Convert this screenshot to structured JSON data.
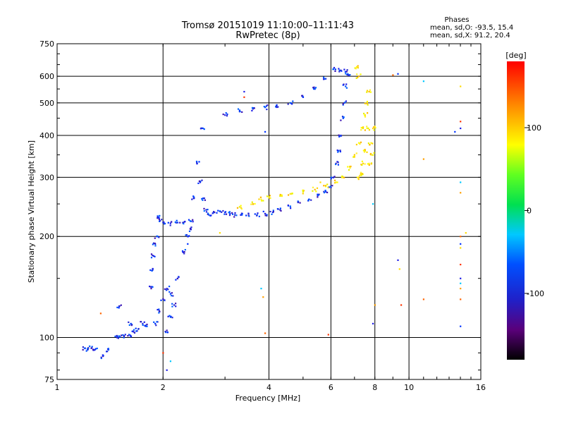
{
  "chart_data": {
    "type": "scatter",
    "title": "Tromsø 20151019 11:10:00–11:11:43",
    "subtitle": "RwPretec (8p)",
    "xlabel": "Frequency [MHz]",
    "ylabel": "Stationary phase Virtual Height [km]",
    "xscale": "log",
    "yscale": "log",
    "xlim": [
      1,
      16
    ],
    "ylim": [
      75,
      750
    ],
    "xticks": [
      1,
      2,
      4,
      6,
      8,
      10,
      16
    ],
    "xtick_labels": [
      "1",
      "2",
      "4",
      "6",
      "8",
      "10",
      "16"
    ],
    "yticks": [
      75,
      100,
      200,
      300,
      400,
      500,
      600,
      750
    ],
    "ytick_labels": [
      "75",
      "100",
      "200",
      "300",
      "400",
      "500",
      "600",
      "750"
    ],
    "grid": true,
    "stats": {
      "heading": "Phases",
      "line_o": "mean, sd,O:  -93.5,  15.4",
      "line_x": "mean, sd,X:   91.2,  20.4"
    },
    "colorbar": {
      "label": "[deg]",
      "range": [
        -180,
        180
      ],
      "ticks": [
        100,
        0,
        -100
      ],
      "tick_labels": [
        "100",
        "0",
        "-100"
      ]
    },
    "series": [
      {
        "mode": "O",
        "points": [
          [
            1.2,
            93
          ],
          [
            1.22,
            92
          ],
          [
            1.25,
            93
          ],
          [
            1.28,
            92
          ],
          [
            1.35,
            88
          ],
          [
            1.4,
            92
          ],
          [
            1.48,
            100
          ],
          [
            1.5,
            101
          ],
          [
            1.55,
            101
          ],
          [
            1.6,
            102
          ],
          [
            1.65,
            104
          ],
          [
            1.7,
            106
          ],
          [
            1.5,
            124
          ],
          [
            1.62,
            110
          ],
          [
            1.75,
            110
          ],
          [
            1.8,
            108
          ],
          [
            1.85,
            140
          ],
          [
            1.87,
            160
          ],
          [
            1.88,
            175
          ],
          [
            1.9,
            190
          ],
          [
            1.92,
            200
          ],
          [
            1.93,
            230
          ],
          [
            1.95,
            225
          ],
          [
            2.0,
            220
          ],
          [
            2.1,
            219
          ],
          [
            2.2,
            220
          ],
          [
            2.3,
            221
          ],
          [
            2.4,
            222
          ],
          [
            2.45,
            260
          ],
          [
            2.5,
            330
          ],
          [
            2.55,
            290
          ],
          [
            2.6,
            260
          ],
          [
            2.65,
            240
          ],
          [
            2.7,
            232
          ],
          [
            2.8,
            236
          ],
          [
            2.9,
            238
          ],
          [
            3.0,
            236
          ],
          [
            3.1,
            234
          ],
          [
            3.2,
            232
          ],
          [
            3.35,
            232
          ],
          [
            3.5,
            231
          ],
          [
            3.7,
            232
          ],
          [
            3.9,
            234
          ],
          [
            4.1,
            236
          ],
          [
            4.3,
            240
          ],
          [
            4.6,
            246
          ],
          [
            4.9,
            252
          ],
          [
            5.2,
            258
          ],
          [
            5.5,
            265
          ],
          [
            5.8,
            272
          ],
          [
            6.0,
            280
          ],
          [
            6.1,
            300
          ],
          [
            6.2,
            330
          ],
          [
            6.3,
            360
          ],
          [
            6.4,
            400
          ],
          [
            6.5,
            450
          ],
          [
            6.55,
            500
          ],
          [
            6.6,
            560
          ],
          [
            6.65,
            620
          ],
          [
            2.6,
            420
          ],
          [
            3.0,
            460
          ],
          [
            3.3,
            475
          ],
          [
            3.6,
            480
          ],
          [
            3.9,
            485
          ],
          [
            4.2,
            490
          ],
          [
            4.6,
            500
          ],
          [
            5.0,
            520
          ],
          [
            5.4,
            550
          ],
          [
            5.8,
            590
          ],
          [
            6.1,
            630
          ],
          [
            6.4,
            625
          ],
          [
            6.7,
            610
          ],
          [
            2.05,
            140
          ],
          [
            2.1,
            135
          ],
          [
            2.15,
            125
          ],
          [
            2.2,
            150
          ],
          [
            2.3,
            180
          ],
          [
            2.35,
            200
          ],
          [
            2.4,
            210
          ],
          [
            1.9,
            110
          ],
          [
            1.95,
            120
          ],
          [
            2.0,
            130
          ],
          [
            2.05,
            105
          ],
          [
            2.1,
            115
          ]
        ]
      },
      {
        "mode": "X",
        "points": [
          [
            4.0,
            262
          ],
          [
            4.3,
            264
          ],
          [
            4.6,
            268
          ],
          [
            5.0,
            272
          ],
          [
            5.4,
            276
          ],
          [
            5.8,
            282
          ],
          [
            6.2,
            290
          ],
          [
            6.5,
            300
          ],
          [
            6.8,
            320
          ],
          [
            7.0,
            350
          ],
          [
            7.2,
            380
          ],
          [
            7.4,
            420
          ],
          [
            7.5,
            460
          ],
          [
            7.6,
            500
          ],
          [
            7.7,
            540
          ],
          [
            7.6,
            420
          ],
          [
            7.5,
            360
          ],
          [
            7.4,
            330
          ],
          [
            7.3,
            310
          ],
          [
            7.2,
            300
          ],
          [
            7.8,
            380
          ],
          [
            7.9,
            350
          ],
          [
            7.9,
            420
          ],
          [
            7.7,
            330
          ],
          [
            7.2,
            600
          ],
          [
            7.1,
            640
          ],
          [
            3.3,
            245
          ],
          [
            3.6,
            250
          ],
          [
            3.8,
            258
          ]
        ]
      },
      {
        "mode": "scattered",
        "points": [
          [
            1.33,
            118
          ],
          [
            2.35,
            190
          ],
          [
            2.9,
            205
          ],
          [
            3.4,
            520
          ],
          [
            3.4,
            540
          ],
          [
            3.8,
            140
          ],
          [
            3.85,
            132
          ],
          [
            3.9,
            103
          ],
          [
            3.9,
            410
          ],
          [
            5.6,
            290
          ],
          [
            5.9,
            102
          ],
          [
            7.9,
            110
          ],
          [
            7.9,
            250
          ],
          [
            8.0,
            125
          ],
          [
            9.0,
            605
          ],
          [
            9.3,
            610
          ],
          [
            9.4,
            160
          ],
          [
            9.5,
            125
          ],
          [
            9.3,
            170
          ],
          [
            11.0,
            580
          ],
          [
            11.0,
            340
          ],
          [
            11.0,
            130
          ],
          [
            13.5,
            410
          ],
          [
            14.0,
            560
          ],
          [
            14.0,
            440
          ],
          [
            14.0,
            420
          ],
          [
            14.0,
            290
          ],
          [
            14.0,
            270
          ],
          [
            14.0,
            200
          ],
          [
            14.0,
            190
          ],
          [
            14.0,
            185
          ],
          [
            14.0,
            165
          ],
          [
            14.0,
            150
          ],
          [
            14.0,
            145
          ],
          [
            14.0,
            140
          ],
          [
            14.0,
            130
          ],
          [
            14.0,
            108
          ],
          [
            14.5,
            205
          ],
          [
            2.0,
            90
          ],
          [
            2.05,
            80
          ],
          [
            2.1,
            85
          ]
        ]
      }
    ]
  }
}
